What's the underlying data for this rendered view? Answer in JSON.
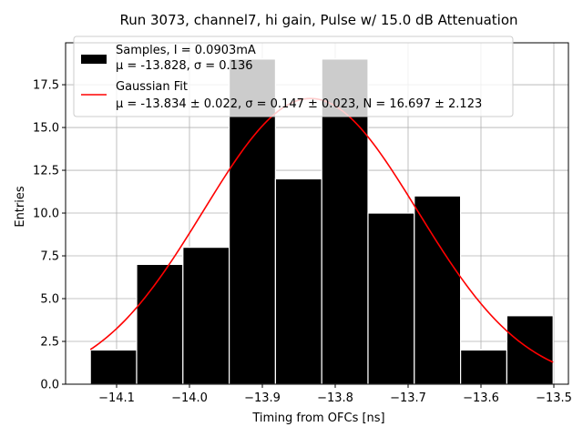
{
  "chart_data": {
    "type": "bar",
    "title": "Run 3073, channel7, hi gain, Pulse w/ 15.0 dB Attenuation",
    "xlabel": "Timing from OFCs [ns]",
    "ylabel": "Entries",
    "xlim": [
      -14.17,
      -13.48
    ],
    "ylim": [
      0,
      19.95
    ],
    "x_ticks": [
      -14.1,
      -14.0,
      -13.9,
      -13.8,
      -13.7,
      -13.6,
      -13.5
    ],
    "x_tick_labels": [
      "−14.1",
      "−14.0",
      "−13.9",
      "−13.8",
      "−13.7",
      "−13.6",
      "−13.5"
    ],
    "y_ticks": [
      0,
      2.5,
      5,
      7.5,
      10,
      12.5,
      15,
      17.5
    ],
    "y_tick_labels": [
      "0.0",
      "2.5",
      "5.0",
      "7.5",
      "10.0",
      "12.5",
      "15.0",
      "17.5"
    ],
    "grid": true,
    "legend_position": "top-left",
    "bins": {
      "edges": [
        -14.136,
        -14.0725,
        -14.009,
        -13.9455,
        -13.882,
        -13.8185,
        -13.755,
        -13.6915,
        -13.628,
        -13.5645,
        -13.501
      ],
      "counts": [
        2,
        7,
        8,
        19,
        12,
        19,
        10,
        11,
        2,
        4
      ],
      "name": "Samples, I = 0.0903mA",
      "stats": "μ = -13.828, σ = 0.136",
      "color": "#000000"
    },
    "fit": {
      "name": "Gaussian Fit",
      "params": "μ = -13.834 ± 0.022, σ = 0.147 ± 0.023, N = 16.697 ± 2.123",
      "mu": -13.834,
      "sigma": 0.147,
      "N": 16.697,
      "x_range": [
        -14.136,
        -13.501
      ],
      "color": "#ff0000"
    }
  }
}
